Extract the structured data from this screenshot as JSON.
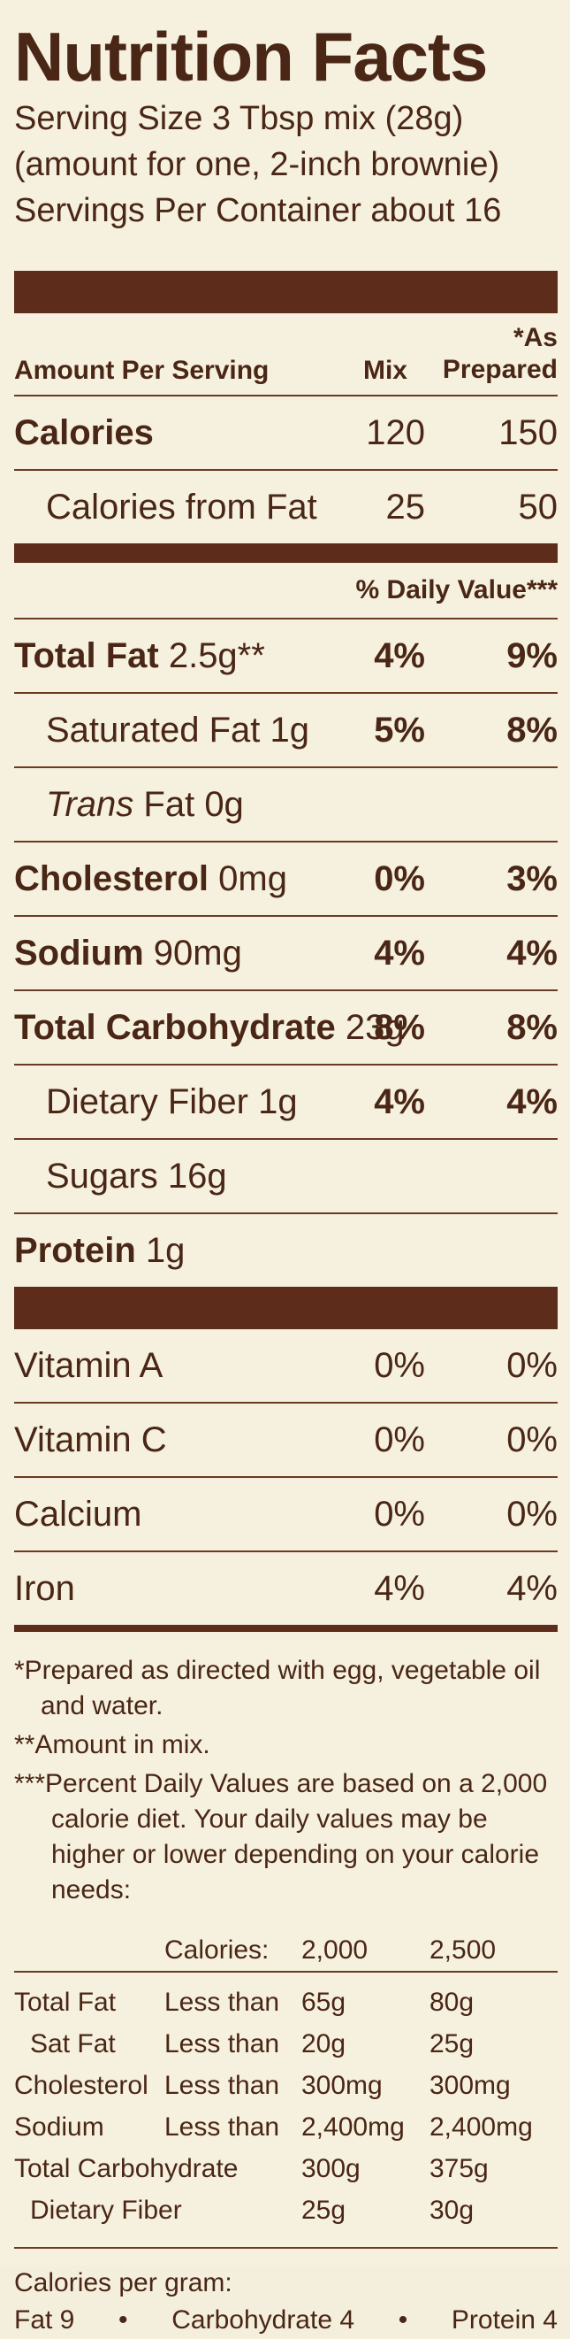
{
  "title": "Nutrition Facts",
  "serving_size": "Serving Size 3 Tbsp mix (28g)",
  "serving_note": "(amount for one, 2-inch brownie)",
  "servings_per_container": "Servings Per Container about 16",
  "header": {
    "amount_per_serving": "Amount Per Serving",
    "mix": "Mix",
    "as_prepared_1": "*As",
    "as_prepared_2": "Prepared"
  },
  "calories": {
    "label": "Calories",
    "mix": "120",
    "prepared": "150"
  },
  "calories_fat": {
    "label": "Calories from Fat",
    "mix": "25",
    "prepared": "50"
  },
  "dv_header": "% Daily Value***",
  "nutrients": [
    {
      "name": "Total Fat",
      "amount": "2.5g**",
      "mix": "4%",
      "prepared": "9%"
    },
    {
      "name": "Saturated Fat",
      "amount": "1g",
      "mix": "5%",
      "prepared": "8%"
    },
    {
      "name": "Trans",
      "amount": "Fat 0g",
      "mix": "",
      "prepared": ""
    },
    {
      "name": "Cholesterol",
      "amount": "0mg",
      "mix": "0%",
      "prepared": "3%"
    },
    {
      "name": "Sodium",
      "amount": "90mg",
      "mix": "4%",
      "prepared": "4%"
    },
    {
      "name": "Total Carbohydrate",
      "amount": "23g",
      "mix": "8%",
      "prepared": "8%"
    },
    {
      "name": "Dietary Fiber",
      "amount": "1g",
      "mix": "4%",
      "prepared": "4%"
    },
    {
      "name": "Sugars",
      "amount": "16g",
      "mix": "",
      "prepared": ""
    },
    {
      "name": "Protein",
      "amount": "1g",
      "mix": "",
      "prepared": ""
    }
  ],
  "vitamins": [
    {
      "name": "Vitamin A",
      "mix": "0%",
      "prepared": "0%"
    },
    {
      "name": "Vitamin C",
      "mix": "0%",
      "prepared": "0%"
    },
    {
      "name": "Calcium",
      "mix": "0%",
      "prepared": "0%"
    },
    {
      "name": "Iron",
      "mix": "4%",
      "prepared": "4%"
    }
  ],
  "footnotes": [
    "*Prepared as directed with egg, vegetable oil and water.",
    "**Amount in mix.",
    "***Percent Daily Values are based on a 2,000 calorie diet. Your daily values may be higher or lower depending on your calorie needs:"
  ],
  "dv_table": {
    "header": [
      "",
      "Calories:",
      "2,000",
      "2,500"
    ],
    "rows": [
      [
        "Total Fat",
        "Less than",
        "65g",
        "80g"
      ],
      [
        "Sat Fat",
        "Less than",
        "20g",
        "25g"
      ],
      [
        "Cholesterol",
        "Less than",
        "300mg",
        "300mg"
      ],
      [
        "Sodium",
        "Less than",
        "2,400mg",
        "2,400mg"
      ],
      [
        "Total Carbohydrate",
        "",
        "300g",
        "375g"
      ],
      [
        "Dietary Fiber",
        "",
        "25g",
        "30g"
      ]
    ]
  },
  "calories_per_gram": {
    "label": "Calories per gram:",
    "fat": "Fat 9",
    "carb": "Carbohydrate 4",
    "protein": "Protein 4",
    "bullet": "•"
  }
}
